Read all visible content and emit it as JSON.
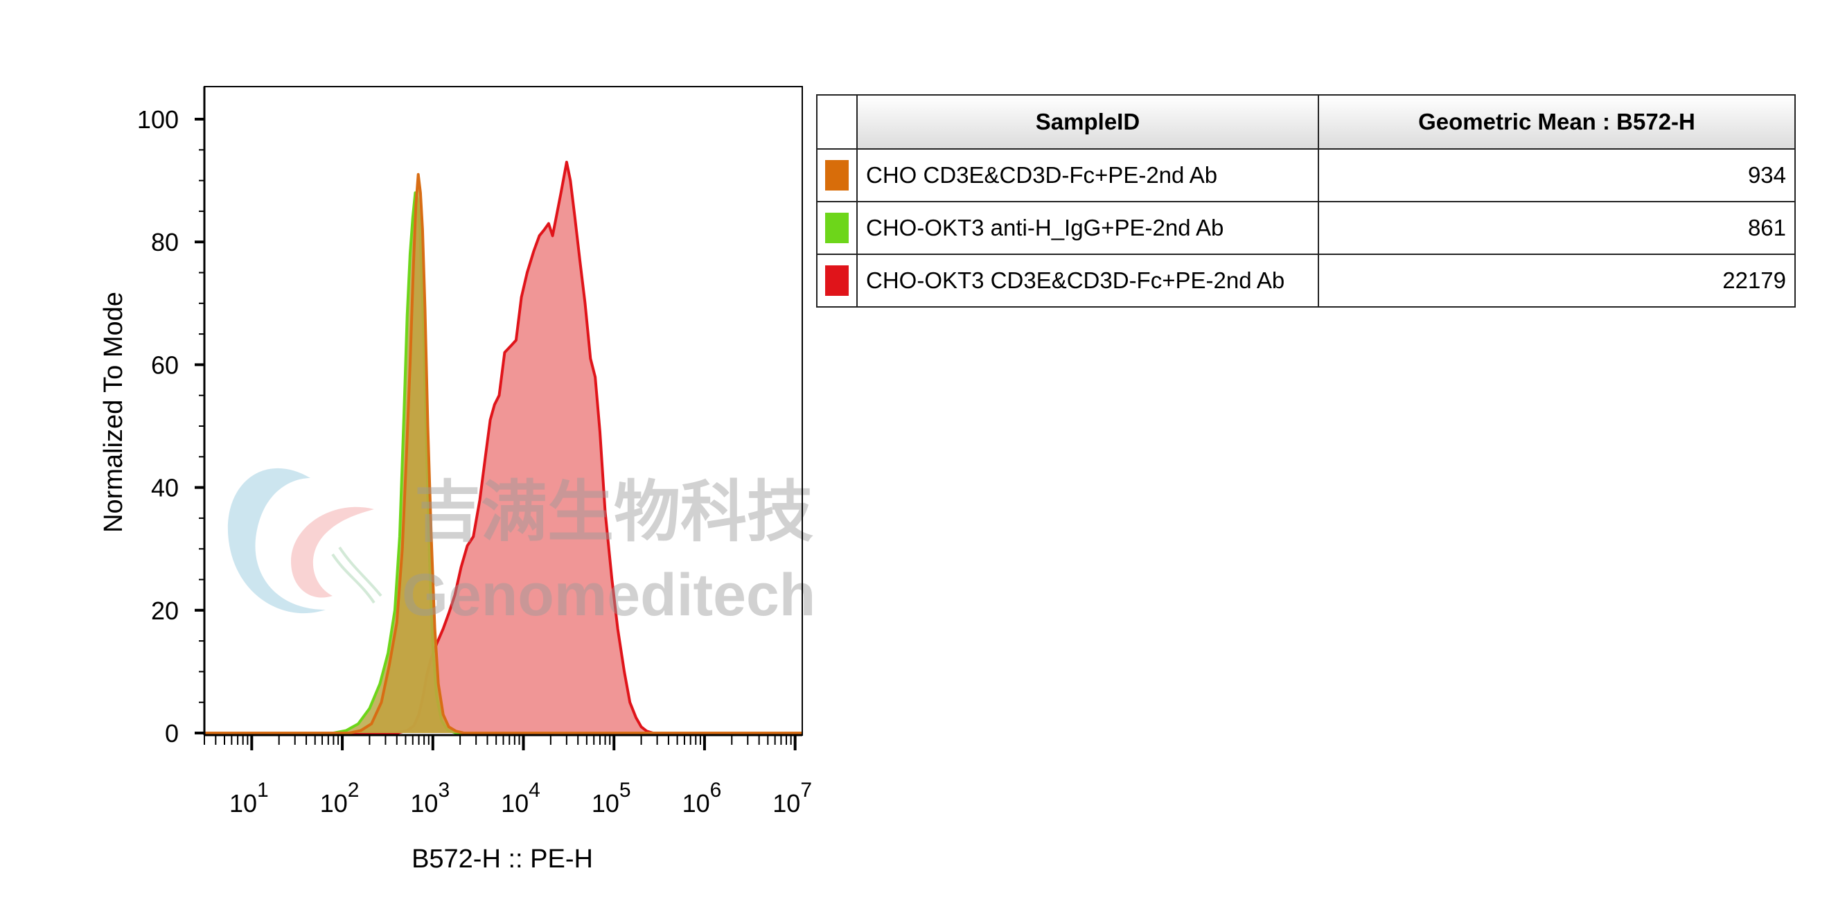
{
  "chart_data": {
    "type": "area",
    "xscale": "log",
    "xlim": [
      3,
      12000000
    ],
    "ylim": [
      0,
      100
    ],
    "xlabel": "B572-H :: PE-H",
    "ylabel": "Normalized To Mode",
    "x_ticks": [
      {
        "base": "10",
        "exp": "1",
        "value": 10
      },
      {
        "base": "10",
        "exp": "2",
        "value": 100
      },
      {
        "base": "10",
        "exp": "3",
        "value": 1000
      },
      {
        "base": "10",
        "exp": "4",
        "value": 10000
      },
      {
        "base": "10",
        "exp": "5",
        "value": 100000
      },
      {
        "base": "10",
        "exp": "6",
        "value": 1000000
      },
      {
        "base": "10",
        "exp": "7",
        "value": 10000000
      }
    ],
    "y_ticks": [
      "0",
      "20",
      "40",
      "60",
      "80",
      "100"
    ],
    "grid": false,
    "series": [
      {
        "name": "CHO-OKT3 CD3E&CD3D-Fc+PE-2nd Ab",
        "stroke": "#e0141a",
        "fill": "#f09696",
        "points": [
          [
            3,
            0
          ],
          [
            400,
            0
          ],
          [
            520,
            0.4
          ],
          [
            620,
            1.2
          ],
          [
            700,
            3
          ],
          [
            780,
            6
          ],
          [
            860,
            9.5
          ],
          [
            950,
            12
          ],
          [
            1100,
            14.5
          ],
          [
            1300,
            17
          ],
          [
            1500,
            19.5
          ],
          [
            1750,
            22.5
          ],
          [
            2050,
            27
          ],
          [
            2400,
            30.5
          ],
          [
            2800,
            32
          ],
          [
            3300,
            38
          ],
          [
            3800,
            45
          ],
          [
            4300,
            51
          ],
          [
            4800,
            53.5
          ],
          [
            5400,
            55
          ],
          [
            6200,
            62
          ],
          [
            7200,
            63
          ],
          [
            8300,
            64
          ],
          [
            9500,
            71
          ],
          [
            11000,
            75
          ],
          [
            13000,
            78.5
          ],
          [
            15000,
            81
          ],
          [
            17000,
            82
          ],
          [
            19000,
            83
          ],
          [
            21000,
            81
          ],
          [
            23000,
            84
          ],
          [
            26000,
            88
          ],
          [
            30000,
            93
          ],
          [
            33000,
            90
          ],
          [
            37000,
            84
          ],
          [
            42000,
            77
          ],
          [
            48000,
            70
          ],
          [
            55000,
            61
          ],
          [
            62000,
            58
          ],
          [
            70000,
            49
          ],
          [
            80000,
            36
          ],
          [
            95000,
            25
          ],
          [
            110000,
            17
          ],
          [
            130000,
            10
          ],
          [
            150000,
            5
          ],
          [
            175000,
            2.5
          ],
          [
            200000,
            1
          ],
          [
            230000,
            0.3
          ],
          [
            270000,
            0
          ],
          [
            12000000,
            0
          ]
        ]
      },
      {
        "name": "CHO-OKT3 anti-H_IgG+PE-2nd Ab",
        "stroke": "#6dd61a",
        "fill": "#b8a848",
        "points": [
          [
            3,
            0
          ],
          [
            80,
            0
          ],
          [
            110,
            0.4
          ],
          [
            150,
            1.5
          ],
          [
            200,
            4
          ],
          [
            260,
            8
          ],
          [
            320,
            13
          ],
          [
            380,
            20
          ],
          [
            430,
            32
          ],
          [
            480,
            52
          ],
          [
            520,
            68
          ],
          [
            560,
            78
          ],
          [
            600,
            84
          ],
          [
            640,
            88
          ],
          [
            680,
            87
          ],
          [
            720,
            82
          ],
          [
            780,
            68
          ],
          [
            850,
            47
          ],
          [
            920,
            28
          ],
          [
            1000,
            14
          ],
          [
            1100,
            6
          ],
          [
            1250,
            2
          ],
          [
            1450,
            0.5
          ],
          [
            1800,
            0
          ],
          [
            12000000,
            0
          ]
        ]
      },
      {
        "name": "CHO CD3E&CD3D-Fc+PE-2nd Ab",
        "stroke": "#d86d14",
        "fill": "#c2a240",
        "points": [
          [
            3,
            0
          ],
          [
            120,
            0
          ],
          [
            160,
            0.4
          ],
          [
            210,
            1.5
          ],
          [
            270,
            5
          ],
          [
            330,
            11
          ],
          [
            400,
            18
          ],
          [
            460,
            30
          ],
          [
            510,
            45
          ],
          [
            560,
            60
          ],
          [
            610,
            76
          ],
          [
            650,
            86
          ],
          [
            690,
            91
          ],
          [
            730,
            88
          ],
          [
            770,
            82
          ],
          [
            820,
            69
          ],
          [
            880,
            50
          ],
          [
            960,
            32
          ],
          [
            1050,
            17
          ],
          [
            1150,
            8
          ],
          [
            1300,
            3
          ],
          [
            1500,
            1
          ],
          [
            1800,
            0.3
          ],
          [
            2200,
            0
          ],
          [
            12000000,
            0
          ]
        ]
      }
    ],
    "table": {
      "headers": [
        "SampleID",
        "Geometric Mean : B572-H"
      ],
      "rows": [
        {
          "color": "#d86d0a",
          "sample": "CHO CD3E&CD3D-Fc+PE-2nd Ab",
          "value": "934"
        },
        {
          "color": "#6dd61a",
          "sample": "CHO-OKT3 anti-H_IgG+PE-2nd Ab",
          "value": "861"
        },
        {
          "color": "#e0141a",
          "sample": "CHO-OKT3 CD3E&CD3D-Fc+PE-2nd Ab",
          "value": "22179"
        }
      ]
    },
    "watermark": {
      "cn": "吉满生物科技",
      "en": "Genomeditech"
    }
  }
}
